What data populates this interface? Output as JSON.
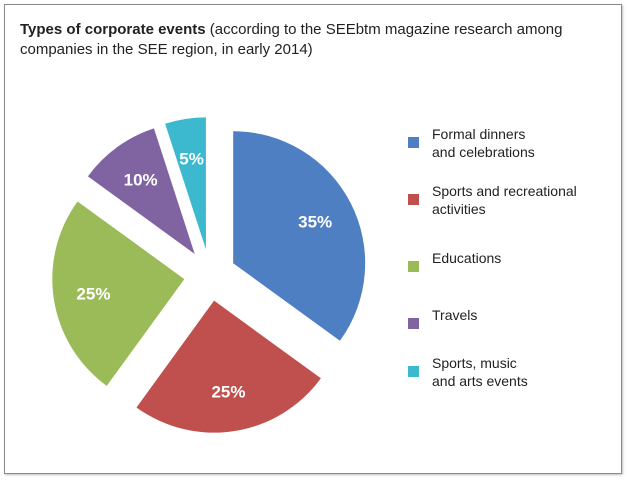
{
  "title": {
    "bold": "Types of corporate events",
    "rest": " (according to the SEEbtm magazine research among companies in the SEE region, in early 2014)"
  },
  "chart_data": {
    "type": "pie",
    "title": "Types of corporate events (according to the SEEbtm magazine research among companies in the SEE region, in early 2014)",
    "categories": [
      "Formal dinners and celebrations",
      "Sports and recreational activities",
      "Educations",
      "Travels",
      "Sports, music and arts events"
    ],
    "values": [
      35,
      25,
      25,
      10,
      5
    ],
    "labels": [
      "35%",
      "25%",
      "25%",
      "10%",
      "5%"
    ],
    "colors": [
      "#4f7fc3",
      "#c0504d",
      "#9bbb59",
      "#8064a2",
      "#3cb8cf"
    ],
    "exploded": true,
    "legend_position": "right"
  },
  "legend": [
    {
      "line1": "Formal dinners",
      "line2": "and celebrations",
      "color": "#4f7fc3"
    },
    {
      "line1": "Sports and recreational",
      "line2": "activities",
      "color": "#c0504d"
    },
    {
      "line1": "Educations",
      "line2": "",
      "color": "#9bbb59"
    },
    {
      "line1": "Travels",
      "line2": "",
      "color": "#8064a2"
    },
    {
      "line1": "Sports, music",
      "line2": "and arts events",
      "color": "#3cb8cf"
    }
  ]
}
